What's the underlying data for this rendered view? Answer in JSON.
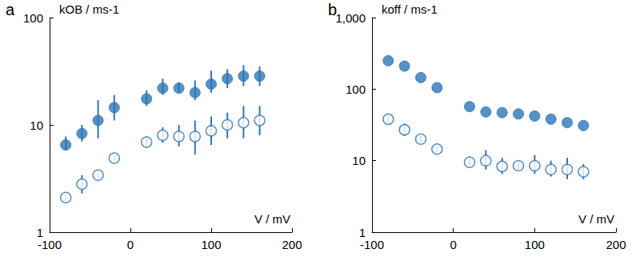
{
  "chart_data": [
    {
      "type": "scatter",
      "title": "a",
      "x_label": "V / mV",
      "y_label": "kOB / ms-1",
      "log": "y",
      "grid": false,
      "xlim": [
        -100,
        200
      ],
      "xticks": [
        -100,
        0,
        100,
        200
      ],
      "ylim": [
        1,
        100
      ],
      "yticks": [
        1,
        10,
        100
      ],
      "x": [
        -80,
        -60,
        -40,
        -20,
        20,
        40,
        60,
        80,
        100,
        120,
        140,
        160
      ],
      "series": [
        {
          "color": "#2e75b6",
          "marker": "circle",
          "values": [
            6.5,
            8.3,
            11,
            14.5,
            17.5,
            22,
            22,
            20,
            24,
            27,
            28.5,
            28.5
          ],
          "errors": [
            [
              5.8,
              7.8
            ],
            [
              7,
              10
            ],
            [
              7.5,
              17
            ],
            [
              11,
              19
            ],
            [
              15,
              21
            ],
            [
              19,
              27
            ],
            [
              20,
              25
            ],
            [
              17,
              26
            ],
            [
              20,
              32
            ],
            [
              22,
              33
            ],
            [
              23,
              36
            ],
            [
              23,
              35
            ]
          ]
        },
        {
          "color": "#2e75b6",
          "marker": "open_circle",
          "values": [
            2.1,
            2.8,
            3.4,
            4.9,
            6.9,
            8,
            7.8,
            7.8,
            8.8,
            10,
            10.5,
            11
          ],
          "errors": [
            [
              1.95,
              2.25
            ],
            [
              2.3,
              3.4
            ],
            [
              3.2,
              3.6
            ],
            [
              4.6,
              5.2
            ],
            [
              6.2,
              7.8
            ],
            [
              6.8,
              9.5
            ],
            [
              6.3,
              10
            ],
            [
              5.3,
              11
            ],
            [
              6.5,
              12
            ],
            [
              7.5,
              13
            ],
            [
              7.5,
              15
            ],
            [
              8,
              15
            ]
          ]
        }
      ]
    },
    {
      "type": "scatter",
      "title": "b",
      "x_label": "V / mV",
      "y_label": "koff / ms-1",
      "log": "y",
      "grid": false,
      "xlim": [
        -100,
        200
      ],
      "xticks": [
        -100,
        0,
        100,
        200
      ],
      "ylim": [
        1,
        1000
      ],
      "yticks": [
        1,
        10,
        100,
        1000
      ],
      "x": [
        -80,
        -60,
        -40,
        -20,
        20,
        40,
        60,
        80,
        100,
        120,
        140,
        160
      ],
      "series": [
        {
          "color": "#2e75b6",
          "marker": "circle",
          "values": [
            250,
            210,
            145,
            105,
            57,
            48,
            47,
            45,
            42,
            38,
            34,
            31
          ]
        },
        {
          "color": "#2e75b6",
          "marker": "open_circle",
          "values": [
            38,
            27,
            20,
            14.5,
            9.5,
            10,
            8.3,
            8.5,
            8.5,
            7.5,
            7.5,
            7
          ],
          "errors": [
            [
              35,
              42
            ],
            [
              22,
              33
            ],
            [
              18,
              22
            ],
            [
              13,
              16
            ],
            [
              8.5,
              11
            ],
            [
              7.5,
              14
            ],
            [
              6.5,
              11
            ],
            [
              7.5,
              10
            ],
            [
              6.5,
              12
            ],
            [
              6,
              10
            ],
            [
              5.5,
              11
            ],
            [
              5.5,
              9
            ]
          ]
        }
      ]
    }
  ]
}
